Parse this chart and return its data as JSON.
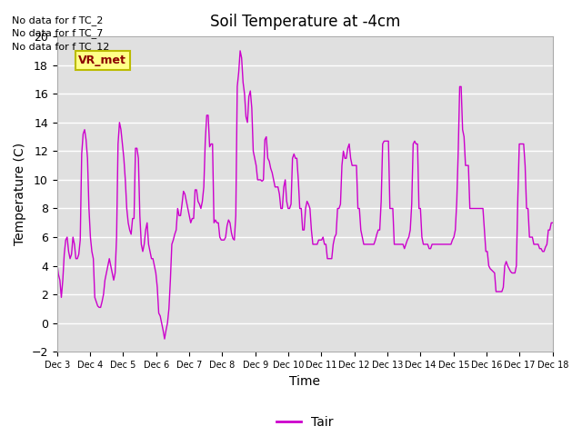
{
  "title": "Soil Temperature at -4cm",
  "xlabel": "Time",
  "ylabel": "Temperature (C)",
  "ylim": [
    -2,
    20
  ],
  "xlim": [
    0,
    360
  ],
  "line_color": "#CC00CC",
  "bg_color": "#E0E0E0",
  "grid_color": "white",
  "no_data_texts": [
    "No data for f TC_2",
    "No data for f TC_7",
    "No data for f TC_12"
  ],
  "vr_met_label": "VR_met",
  "legend_label": "Tair",
  "x_tick_labels": [
    "Dec 3",
    "Dec 4",
    "Dec 5",
    "Dec 6",
    "Dec 7",
    "Dec 8",
    "Dec 9",
    "Dec 10",
    "Dec 11",
    "Dec 12",
    "Dec 13",
    "Dec 14",
    "Dec 15",
    "Dec 16",
    "Dec 17",
    "Dec 18"
  ],
  "x_tick_positions": [
    0,
    24,
    48,
    72,
    96,
    120,
    144,
    168,
    192,
    216,
    240,
    264,
    288,
    312,
    336,
    360
  ],
  "temperature_data": [
    4.2,
    3.4,
    3.0,
    1.8,
    3.0,
    4.8,
    5.8,
    6.0,
    5.0,
    4.5,
    4.8,
    6.0,
    5.5,
    4.5,
    4.5,
    4.8,
    5.8,
    11.8,
    13.2,
    13.5,
    12.8,
    11.5,
    8.0,
    6.0,
    5.0,
    4.5,
    1.8,
    1.5,
    1.2,
    1.1,
    1.1,
    1.5,
    2.0,
    3.0,
    3.5,
    4.0,
    4.5,
    4.0,
    3.5,
    3.0,
    3.5,
    6.0,
    12.5,
    14.0,
    13.5,
    12.5,
    11.5,
    10.0,
    8.0,
    7.0,
    6.5,
    6.2,
    7.3,
    7.3,
    12.2,
    12.2,
    11.5,
    7.5,
    5.5,
    5.0,
    5.5,
    6.5,
    7.0,
    5.5,
    5.0,
    4.5,
    4.5,
    4.0,
    3.5,
    2.5,
    0.7,
    0.5,
    0.0,
    -0.5,
    -1.1,
    -0.5,
    0.0,
    1.0,
    3.0,
    5.5,
    5.8,
    6.2,
    6.5,
    8.0,
    7.5,
    7.5,
    8.3,
    9.2,
    9.0,
    8.5,
    8.0,
    7.5,
    7.0,
    7.3,
    7.3,
    9.3,
    9.3,
    8.5,
    8.3,
    8.0,
    8.5,
    9.5,
    12.7,
    14.5,
    14.5,
    12.3,
    12.5,
    12.5,
    7.0,
    7.2,
    7.0,
    7.0,
    6.0,
    5.8,
    5.8,
    5.8,
    6.0,
    6.8,
    7.2,
    7.0,
    6.3,
    5.9,
    5.8,
    7.5,
    16.5,
    17.5,
    19.0,
    18.5,
    16.8,
    16.0,
    14.4,
    14.0,
    15.8,
    16.2,
    15.0,
    12.0,
    11.5,
    11.0,
    10.0,
    10.0,
    10.0,
    9.9,
    10.0,
    12.8,
    13.0,
    11.5,
    11.3,
    10.8,
    10.5,
    10.0,
    9.5,
    9.5,
    9.5,
    9.0,
    8.0,
    8.0,
    9.5,
    10.0,
    8.5,
    8.0,
    8.0,
    8.3,
    11.5,
    11.8,
    11.5,
    11.5,
    10.0,
    8.0,
    8.0,
    6.5,
    6.5,
    8.0,
    8.5,
    8.3,
    8.0,
    6.5,
    5.5,
    5.5,
    5.5,
    5.5,
    5.8,
    5.8,
    5.8,
    6.0,
    5.5,
    5.5,
    4.5,
    4.5,
    4.5,
    4.5,
    5.5,
    6.0,
    6.2,
    8.0,
    8.0,
    8.3,
    11.0,
    12.0,
    11.5,
    11.5,
    12.2,
    12.5,
    11.5,
    11.0,
    11.0,
    11.0,
    11.0,
    8.0,
    8.0,
    6.5,
    6.0,
    5.5,
    5.5,
    5.5,
    5.5,
    5.5,
    5.5,
    5.5,
    5.5,
    5.8,
    6.2,
    6.5,
    6.5,
    8.5,
    12.5,
    12.7,
    12.7,
    12.7,
    12.7,
    8.0,
    8.0,
    8.0,
    5.5,
    5.5,
    5.5,
    5.5,
    5.5,
    5.5,
    5.5,
    5.2,
    5.5,
    5.8,
    6.0,
    6.5,
    8.3,
    12.5,
    12.7,
    12.5,
    12.5,
    8.0,
    8.0,
    6.0,
    5.5,
    5.5,
    5.5,
    5.5,
    5.2,
    5.2,
    5.5,
    5.5,
    5.5,
    5.5,
    5.5,
    5.5,
    5.5,
    5.5,
    5.5,
    5.5,
    5.5,
    5.5,
    5.5,
    5.5,
    5.8,
    6.0,
    6.5,
    8.5,
    12.0,
    16.5,
    16.5,
    13.5,
    13.0,
    11.0,
    11.0,
    11.0,
    8.0,
    8.0,
    8.0,
    8.0,
    8.0,
    8.0,
    8.0,
    8.0,
    8.0,
    8.0,
    6.5,
    5.0,
    5.0,
    4.0,
    3.8,
    3.7,
    3.6,
    3.5,
    2.2,
    2.2,
    2.2,
    2.2,
    2.2,
    2.5,
    4.0,
    4.3,
    4.0,
    3.8,
    3.6,
    3.5,
    3.5,
    3.5,
    4.0,
    8.8,
    12.5,
    12.5,
    12.5,
    12.5,
    11.0,
    8.0,
    8.0,
    6.0,
    6.0,
    6.0,
    5.5,
    5.5,
    5.5,
    5.5,
    5.2,
    5.2,
    5.0,
    5.0,
    5.3,
    5.5,
    6.5,
    6.5,
    7.0,
    7.0
  ]
}
